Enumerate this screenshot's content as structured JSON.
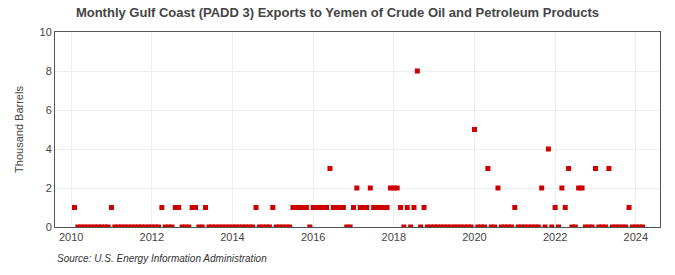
{
  "chart_data": {
    "type": "scatter",
    "title": "Monthly Gulf Coast (PADD 3) Exports to Yemen of Crude Oil and Petroleum Products",
    "ylabel": "Thousand Barrels",
    "annotations": [
      "Source: U.S. Energy Information Administration"
    ],
    "color": "#cc0000",
    "marker": "square",
    "grid": true,
    "xlim": [
      2009.6,
      2024.6
    ],
    "xticks": [
      2010,
      2012,
      2014,
      2016,
      2018,
      2020,
      2022,
      2024
    ],
    "ylim": [
      0,
      10
    ],
    "yticks": [
      0,
      2,
      4,
      6,
      8,
      10
    ],
    "x": [
      2010.083,
      2010.167,
      2010.25,
      2010.333,
      2010.417,
      2010.5,
      2010.583,
      2010.667,
      2010.75,
      2010.833,
      2010.917,
      2011.0,
      2011.083,
      2011.167,
      2011.25,
      2011.333,
      2011.417,
      2011.5,
      2011.583,
      2011.667,
      2011.75,
      2011.833,
      2011.917,
      2012.0,
      2012.083,
      2012.167,
      2012.25,
      2012.333,
      2012.417,
      2012.5,
      2012.583,
      2012.667,
      2012.75,
      2012.833,
      2012.917,
      2013.0,
      2013.083,
      2013.167,
      2013.25,
      2013.333,
      2013.417,
      2013.5,
      2013.583,
      2013.667,
      2013.75,
      2013.833,
      2013.917,
      2014.0,
      2014.083,
      2014.167,
      2014.25,
      2014.333,
      2014.417,
      2014.5,
      2014.583,
      2014.667,
      2014.75,
      2014.833,
      2014.917,
      2015.0,
      2015.083,
      2015.167,
      2015.25,
      2015.333,
      2015.417,
      2015.5,
      2015.583,
      2015.667,
      2015.75,
      2015.833,
      2015.917,
      2016.0,
      2016.083,
      2016.167,
      2016.25,
      2016.333,
      2016.417,
      2016.5,
      2016.583,
      2016.667,
      2016.75,
      2016.833,
      2016.917,
      2017.0,
      2017.083,
      2017.167,
      2017.25,
      2017.333,
      2017.417,
      2017.5,
      2017.583,
      2017.667,
      2017.75,
      2017.833,
      2017.917,
      2018.0,
      2018.083,
      2018.167,
      2018.25,
      2018.333,
      2018.417,
      2018.5,
      2018.583,
      2018.667,
      2018.75,
      2018.833,
      2018.917,
      2019.0,
      2019.083,
      2019.167,
      2019.25,
      2019.333,
      2019.417,
      2019.5,
      2019.583,
      2019.667,
      2019.75,
      2019.833,
      2019.917,
      2020.0,
      2020.083,
      2020.167,
      2020.25,
      2020.333,
      2020.417,
      2020.5,
      2020.583,
      2020.667,
      2020.75,
      2020.833,
      2020.917,
      2021.0,
      2021.083,
      2021.167,
      2021.25,
      2021.333,
      2021.417,
      2021.5,
      2021.583,
      2021.667,
      2021.75,
      2021.833,
      2021.917,
      2022.0,
      2022.083,
      2022.167,
      2022.25,
      2022.333,
      2022.417,
      2022.5,
      2022.583,
      2022.667,
      2022.75,
      2022.833,
      2022.917,
      2023.0,
      2023.083,
      2023.167,
      2023.25,
      2023.333,
      2023.417,
      2023.5,
      2023.583,
      2023.667,
      2023.75,
      2023.833,
      2023.917,
      2024.0,
      2024.083,
      2024.167
    ],
    "values": [
      1,
      0,
      0,
      0,
      0,
      0,
      0,
      0,
      0,
      0,
      0,
      1,
      0,
      0,
      0,
      0,
      0,
      0,
      0,
      0,
      0,
      0,
      0,
      0,
      0,
      0,
      1,
      0,
      0,
      0,
      1,
      1,
      0,
      0,
      0,
      1,
      1,
      0,
      0,
      1,
      0,
      0,
      0,
      0,
      0,
      0,
      0,
      0,
      0,
      0,
      0,
      0,
      0,
      0,
      1,
      0,
      0,
      0,
      0,
      1,
      0,
      0,
      0,
      0,
      0,
      1,
      1,
      1,
      1,
      1,
      0,
      1,
      1,
      1,
      1,
      1,
      3,
      1,
      1,
      1,
      1,
      0,
      0,
      1,
      2,
      1,
      1,
      1,
      2,
      1,
      1,
      1,
      1,
      1,
      2,
      2,
      2,
      1,
      0,
      1,
      0,
      1,
      8,
      0,
      1,
      0,
      0,
      0,
      0,
      0,
      0,
      0,
      0,
      0,
      0,
      0,
      0,
      0,
      0,
      5,
      0,
      0,
      0,
      3,
      0,
      0,
      2,
      0,
      0,
      0,
      0,
      1,
      0,
      0,
      0,
      0,
      0,
      0,
      0,
      2,
      0,
      4,
      0,
      1,
      0,
      2,
      1,
      3,
      0,
      0,
      2,
      2,
      0,
      0,
      0,
      3,
      0,
      0,
      0,
      3,
      0,
      0,
      0,
      0,
      0,
      1,
      0,
      0,
      0,
      0
    ]
  }
}
